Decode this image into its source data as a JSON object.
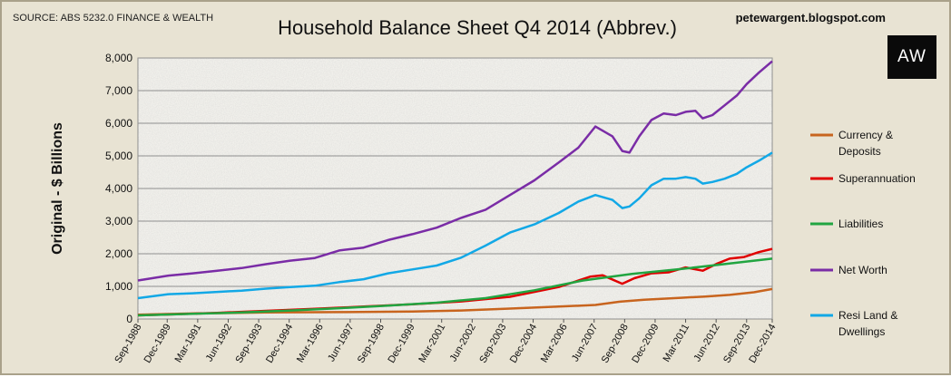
{
  "header": {
    "source": "SOURCE: ABS 5232.0 FINANCE & WEALTH",
    "title": "Household Balance Sheet Q4 2014 (Abbrev.)",
    "blog": "petewargent.blogspot.com",
    "logo_text": "AW"
  },
  "chart_data": {
    "type": "line",
    "title": "Household Balance Sheet Q4 2014 (Abbrev.)",
    "xlabel": "",
    "ylabel": "Original - $ Billions",
    "ylim": [
      0,
      8000
    ],
    "yticks": [
      0,
      1000,
      2000,
      3000,
      4000,
      5000,
      6000,
      7000,
      8000
    ],
    "ytick_labels": [
      "0",
      "1,000",
      "2,000",
      "3,000",
      "4,000",
      "5,000",
      "6,000",
      "7,000",
      "8,000"
    ],
    "xlim": [
      1988.75,
      2014.75
    ],
    "xticks": [
      1988.75,
      1989.95,
      1991.2,
      1992.45,
      1993.7,
      1994.95,
      1996.2,
      1997.45,
      1998.7,
      1999.95,
      2001.2,
      2002.45,
      2003.7,
      2004.95,
      2006.2,
      2007.45,
      2008.7,
      2009.95,
      2011.2,
      2012.45,
      2013.7,
      2014.95
    ],
    "xtick_labels": [
      "Sep-1988",
      "Dec-1989",
      "Mar-1991",
      "Jun-1992",
      "Sep-1993",
      "Dec-1994",
      "Mar-1996",
      "Jun-1997",
      "Sep-1998",
      "Dec-1999",
      "Mar-2001",
      "Jun-2002",
      "Sep-2003",
      "Dec-2004",
      "Mar-2006",
      "Jun-2007",
      "Sep-2008",
      "Dec-2009",
      "Mar-2011",
      "Jun-2012",
      "Sep-2013",
      "Dec-2014"
    ],
    "grid": true,
    "legend_position": "right",
    "series": [
      {
        "name": "Currency & Deposits",
        "color": "#c8641e",
        "x": [
          1988.75,
          1991,
          1994,
          1997,
          2000,
          2002,
          2004,
          2006,
          2007.5,
          2008.5,
          2009.5,
          2011,
          2012,
          2013,
          2014,
          2014.75
        ],
        "values": [
          130,
          170,
          200,
          210,
          230,
          260,
          320,
          380,
          430,
          530,
          590,
          650,
          690,
          740,
          820,
          920
        ]
      },
      {
        "name": "Superannuation",
        "color": "#e00000",
        "x": [
          1988.75,
          1990,
          1992,
          1994,
          1996,
          1998,
          2000,
          2002,
          2004,
          2006,
          2007.3,
          2007.8,
          2008.6,
          2009.1,
          2009.8,
          2010.5,
          2011.2,
          2011.9,
          2012.5,
          2013,
          2013.6,
          2014.2,
          2014.75
        ],
        "values": [
          110,
          140,
          190,
          250,
          310,
          380,
          450,
          540,
          680,
          980,
          1300,
          1340,
          1080,
          1250,
          1400,
          1430,
          1580,
          1480,
          1700,
          1850,
          1900,
          2050,
          2150
        ]
      },
      {
        "name": "Liabilities",
        "color": "#21a541",
        "x": [
          1988.75,
          1991,
          1993,
          1995,
          1997,
          1999,
          2001,
          2003,
          2005,
          2007,
          2009,
          2011,
          2013,
          2014.75
        ],
        "values": [
          110,
          160,
          200,
          260,
          330,
          410,
          500,
          640,
          880,
          1180,
          1380,
          1530,
          1700,
          1850
        ]
      },
      {
        "name": "Net Worth",
        "color": "#7a2ca6",
        "x": [
          1988.75,
          1990,
          1991,
          1992,
          1993,
          1994,
          1995,
          1996,
          1997,
          1998,
          1999,
          2000,
          2001,
          2002,
          2003,
          2004,
          2005,
          2006,
          2006.8,
          2007.5,
          2008.2,
          2008.6,
          2008.9,
          2009.3,
          2009.8,
          2010.3,
          2010.8,
          2011.2,
          2011.6,
          2011.9,
          2012.3,
          2012.8,
          2013.3,
          2013.7,
          2014.2,
          2014.75
        ],
        "values": [
          1180,
          1330,
          1400,
          1480,
          1560,
          1680,
          1790,
          1870,
          2100,
          2190,
          2420,
          2600,
          2800,
          3100,
          3350,
          3800,
          4250,
          4800,
          5250,
          5900,
          5600,
          5150,
          5100,
          5600,
          6100,
          6300,
          6250,
          6350,
          6380,
          6150,
          6250,
          6550,
          6850,
          7200,
          7550,
          7900
        ]
      },
      {
        "name": "Resi Land & Dwellings",
        "color": "#12a8e6",
        "x": [
          1988.75,
          1990,
          1991,
          1992,
          1993,
          1994,
          1995,
          1996,
          1997,
          1998,
          1999,
          2000,
          2001,
          2002,
          2003,
          2004,
          2005,
          2006,
          2006.8,
          2007.5,
          2008.2,
          2008.6,
          2008.9,
          2009.3,
          2009.8,
          2010.3,
          2010.8,
          2011.2,
          2011.6,
          2011.9,
          2012.3,
          2012.8,
          2013.3,
          2013.7,
          2014.2,
          2014.75
        ],
        "values": [
          640,
          760,
          790,
          830,
          870,
          930,
          980,
          1020,
          1130,
          1220,
          1400,
          1520,
          1640,
          1880,
          2250,
          2650,
          2900,
          3250,
          3600,
          3800,
          3650,
          3400,
          3450,
          3700,
          4100,
          4300,
          4300,
          4350,
          4300,
          4150,
          4200,
          4300,
          4450,
          4650,
          4850,
          5100
        ]
      }
    ]
  }
}
